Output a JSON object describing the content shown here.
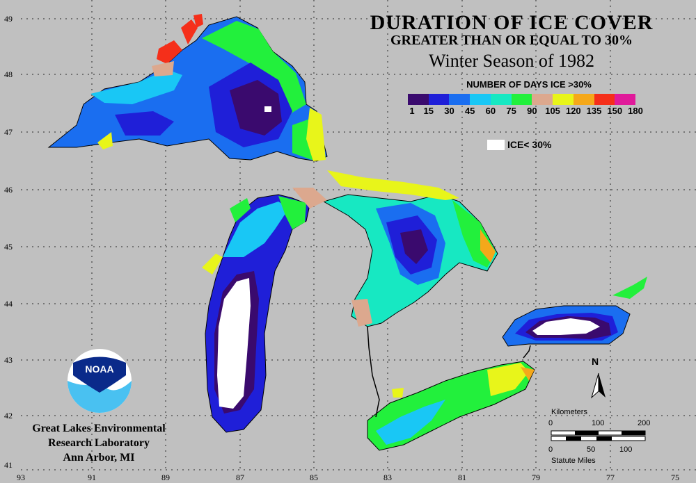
{
  "title": "DURATION OF ICE COVER",
  "subtitle": "GREATER THAN OR EQUAL TO 30%",
  "season": "Winter Season of 1982",
  "legend": {
    "title": "NUMBER OF DAYS ICE >30%",
    "bins": [
      "1",
      "15",
      "30",
      "45",
      "60",
      "75",
      "90",
      "105",
      "120",
      "135",
      "150",
      "180"
    ],
    "colors": [
      "#3a0a6e",
      "#1f1fd8",
      "#1a6ef0",
      "#19c7f5",
      "#17e8c2",
      "#22f03c",
      "#dca88e",
      "#e8f51a",
      "#f5a81a",
      "#f52f1a",
      "#e01a9a"
    ],
    "ice_less_label": "ICE< 30%"
  },
  "lat_labels": [
    "49",
    "48",
    "47",
    "46",
    "45",
    "44",
    "43",
    "42",
    "41"
  ],
  "lon_labels": [
    "93",
    "91",
    "89",
    "87",
    "85",
    "83",
    "81",
    "79",
    "77",
    "75"
  ],
  "institution": {
    "logo_text": "NOAA",
    "line1": "Great Lakes Environmental",
    "line2": "Research Laboratory",
    "line3": "Ann Arbor, MI"
  },
  "north_label": "N",
  "scalebar": {
    "km_label": "Kilometers",
    "km_ticks": [
      "0",
      "100",
      "200"
    ],
    "mi_ticks": [
      "0",
      "50",
      "100"
    ],
    "mi_label": "Statute Miles"
  }
}
